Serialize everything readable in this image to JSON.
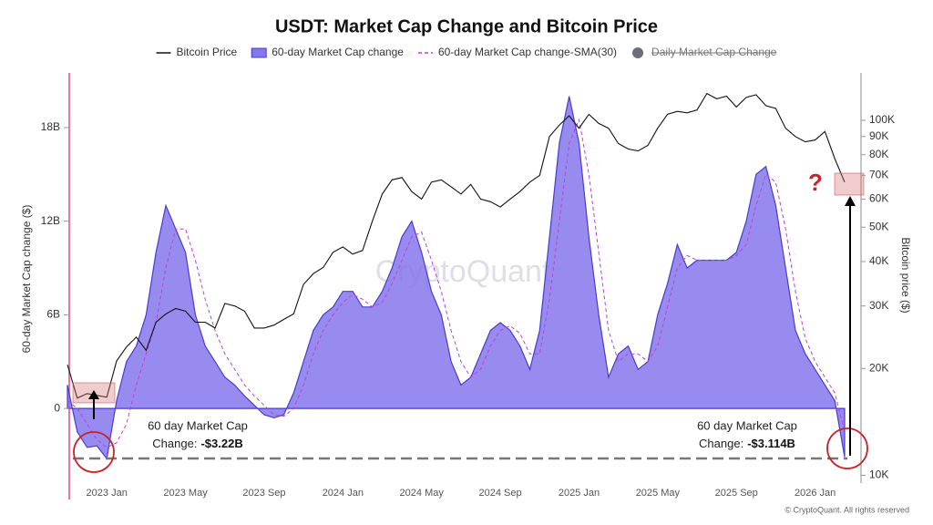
{
  "chart_data": {
    "type": "line",
    "title": "USDT: Market Cap Change and Bitcoin Price",
    "y_label": "60-day Market Cap change ($)",
    "y2_label": "Bitcoin price ($)",
    "watermark": "CryptoQuant",
    "copyright": "© CryptoQuant. All rights reserved",
    "categories": [
      null,
      null,
      null,
      null,
      "2023 Jan",
      null,
      null,
      null,
      null,
      null,
      null,
      null,
      "2023 May",
      null,
      null,
      null,
      null,
      null,
      null,
      null,
      "2023 Sep",
      null,
      null,
      null,
      null,
      null,
      null,
      null,
      "2024 Jan",
      null,
      null,
      null,
      null,
      null,
      null,
      null,
      "2024 May",
      null,
      null,
      null,
      null,
      null,
      null,
      null,
      "2024 Sep",
      null,
      null,
      null,
      null,
      null,
      null,
      null,
      "2025 Jan",
      null,
      null,
      null,
      null,
      null,
      null,
      null,
      "2025 May",
      null,
      null,
      null,
      null,
      null,
      null,
      null,
      "2025 Sep",
      null,
      null,
      null,
      null,
      null,
      null,
      null,
      "2026 Jan",
      null,
      null,
      null
    ],
    "series": [
      {
        "name": "Bitcoin Price",
        "color": "#111111",
        "style": "line",
        "axis": "y2",
        "values": [
          20500,
          16500,
          17000,
          16800,
          16600,
          21000,
          23000,
          24500,
          22500,
          27000,
          28500,
          29500,
          29000,
          27000,
          27000,
          26000,
          30500,
          30000,
          29000,
          26000,
          26000,
          26500,
          27500,
          28500,
          34500,
          37000,
          38500,
          42500,
          44000,
          42000,
          43000,
          52000,
          62000,
          68000,
          69000,
          63000,
          60000,
          67000,
          68000,
          65000,
          62000,
          66000,
          60000,
          59000,
          57000,
          60000,
          63000,
          67000,
          70000,
          90000,
          97000,
          103000,
          95000,
          104000,
          98000,
          95000,
          86000,
          83000,
          82000,
          85000,
          95000,
          104000,
          106000,
          105000,
          107000,
          119000,
          115000,
          117000,
          109000,
          116000,
          118000,
          110000,
          108000,
          95000,
          90000,
          87000,
          88000,
          93000,
          78000,
          67000
        ]
      },
      {
        "name": "60-day Market Cap change",
        "color": "#8577ec",
        "style": "area",
        "values": [
          1.5,
          -1.5,
          -2.5,
          -2.4,
          -3.22,
          0.5,
          3,
          4,
          6,
          10,
          13,
          11.5,
          10,
          6,
          4,
          3,
          2,
          1.5,
          0.8,
          0.2,
          -0.4,
          -0.6,
          -0.4,
          1,
          3,
          5,
          6,
          6.5,
          7.5,
          7.5,
          6.5,
          6.5,
          7.5,
          9,
          11,
          12,
          10,
          7.5,
          6,
          3,
          1.5,
          2,
          3.5,
          5,
          5.5,
          5,
          4,
          2.5,
          5,
          11,
          17,
          20,
          17,
          11,
          6,
          2,
          3.5,
          4,
          2.5,
          3,
          6,
          8,
          10.5,
          9,
          9.5,
          9.5,
          9.5,
          9.5,
          10,
          12,
          15,
          15.5,
          13,
          9,
          5,
          3.5,
          2.5,
          1.5,
          0.5,
          -3.114
        ]
      },
      {
        "name": "60-day Market Cap change-SMA(30)",
        "color": "#c13fd3",
        "style": "dashed",
        "values": [
          0.5,
          0,
          -1,
          -2,
          -2.5,
          -2.2,
          -1,
          1.5,
          3.5,
          5.5,
          9,
          11.5,
          11.5,
          9.5,
          7,
          5,
          3.5,
          2.5,
          1.5,
          0.8,
          0.2,
          -0.4,
          -0.5,
          0,
          1.5,
          3.5,
          5,
          6,
          6.8,
          7.3,
          7,
          6.5,
          6.8,
          8,
          9.5,
          11,
          11.3,
          9.5,
          7.5,
          5,
          3,
          2,
          2.5,
          4,
          5,
          5.3,
          4.8,
          3.5,
          3.5,
          7,
          12,
          17,
          18.5,
          15,
          10,
          5,
          3,
          3.5,
          3.5,
          3,
          4,
          6.5,
          9,
          9.8,
          9.5,
          9.5,
          9.5,
          9.5,
          9.8,
          10.5,
          13,
          15,
          14.5,
          11.5,
          7.5,
          4.5,
          3,
          2,
          1,
          -1.5
        ]
      }
    ],
    "hidden_series": [
      {
        "name": "Daily Market Cap Change",
        "color": "#6e6e7a"
      }
    ],
    "ylim": [
      -4.9,
      21.5
    ],
    "yticks": [
      0,
      {
        "value": 6,
        "label": "6B"
      },
      {
        "value": 12,
        "label": "12B"
      },
      {
        "value": 18,
        "label": "18B"
      }
    ],
    "y2lim": [
      9400,
      136000
    ],
    "y2_log": true,
    "y2ticks": [
      {
        "value": 10000,
        "label": "10K"
      },
      {
        "value": 20000,
        "label": "20K"
      },
      {
        "value": 30000,
        "label": "30K"
      },
      {
        "value": 40000,
        "label": "40K"
      },
      {
        "value": 50000,
        "label": "50K"
      },
      {
        "value": 60000,
        "label": "60K"
      },
      {
        "value": 70000,
        "label": "70K"
      },
      {
        "value": 80000,
        "label": "80K"
      },
      {
        "value": 90000,
        "label": "90K"
      },
      {
        "value": 100000,
        "label": "100K"
      }
    ],
    "grid": false,
    "annotations": [
      {
        "line1": "60 day Market Cap",
        "line2": "Change:",
        "value_label": "-$3.22B",
        "value": -3.22
      },
      {
        "line1": "60 day Market Cap",
        "line2": "Change:",
        "value_label": "-$3.114B",
        "value": -3.114
      }
    ],
    "question_mark": "?"
  }
}
